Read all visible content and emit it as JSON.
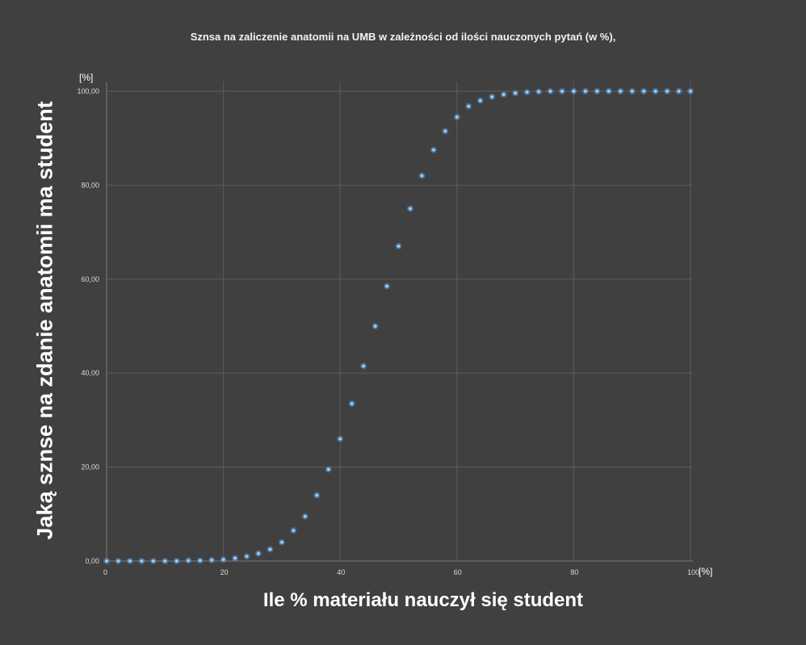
{
  "chart_data": {
    "type": "scatter",
    "title": "Sznsa na zaliczenie anatomii na UMB w zależności od ilości nauczonych pytań (w %),",
    "xlabel": "Ile % materiału nauczył się student",
    "ylabel": "Jaką sznse na zdanie anatomii ma student",
    "x_unit": "[%]",
    "y_unit": "[%]",
    "xlim": [
      0,
      100
    ],
    "ylim": [
      0,
      100
    ],
    "x_ticks": [
      "0",
      "20",
      "40",
      "60",
      "80",
      "100"
    ],
    "y_ticks": [
      "0,00",
      "20,00",
      "40,00",
      "60,00",
      "80,00",
      "100,00"
    ],
    "grid": true,
    "legend": "none",
    "marker_color": "#5b9bd5",
    "x": [
      0,
      2,
      4,
      6,
      8,
      10,
      12,
      14,
      16,
      18,
      20,
      22,
      24,
      26,
      28,
      30,
      32,
      34,
      36,
      38,
      40,
      42,
      44,
      46,
      48,
      50,
      52,
      54,
      56,
      58,
      60,
      62,
      64,
      66,
      68,
      70,
      72,
      74,
      76,
      78,
      80,
      82,
      84,
      86,
      88,
      90,
      92,
      94,
      96,
      98,
      100
    ],
    "y": [
      0.0,
      0.0,
      0.0,
      0.0,
      0.0,
      0.0,
      0.0,
      0.1,
      0.1,
      0.2,
      0.3,
      0.6,
      1.0,
      1.6,
      2.5,
      4.0,
      6.5,
      9.5,
      14.0,
      19.5,
      26.0,
      33.5,
      41.5,
      50.0,
      58.5,
      67.0,
      75.0,
      82.0,
      87.5,
      91.5,
      94.5,
      96.8,
      98.0,
      98.8,
      99.3,
      99.6,
      99.8,
      99.9,
      100.0,
      100.0,
      100.0,
      100.0,
      100.0,
      100.0,
      100.0,
      100.0,
      100.0,
      100.0,
      100.0,
      100.0,
      100.0
    ]
  }
}
